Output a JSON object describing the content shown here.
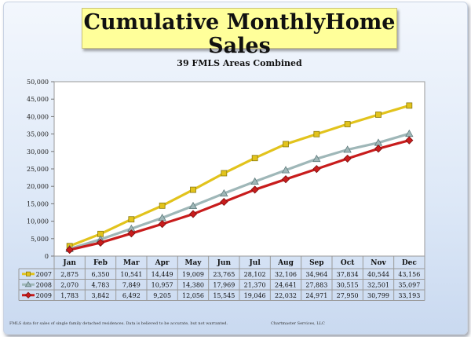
{
  "title": "Cumulative MonthlyHome Sales",
  "subtitle": "39 FMLS Areas Combined",
  "footer": {
    "note": "FMLS data for sales of single family detached residences.  Data is believed to be accurate, but not warranted.",
    "credit": "Chartmaster Services, LLC"
  },
  "chart_data": {
    "type": "line",
    "categories": [
      "Jan",
      "Feb",
      "Mar",
      "Apr",
      "May",
      "Jun",
      "Jul",
      "Aug",
      "Sep",
      "Oct",
      "Nov",
      "Dec"
    ],
    "yticks": [
      "0",
      "5,000",
      "10,000",
      "15,000",
      "20,000",
      "25,000",
      "30,000",
      "35,000",
      "40,000",
      "45,000",
      "50,000"
    ],
    "ylim": [
      0,
      50000
    ],
    "grid": false,
    "legend": "table-left",
    "series": [
      {
        "name": "2007",
        "color": "#e2c31c",
        "marker": "square",
        "values": [
          2875,
          6350,
          10541,
          14449,
          19009,
          23765,
          28102,
          32106,
          34964,
          37834,
          40544,
          43156
        ],
        "labels": [
          "2,875",
          "6,350",
          "10,541",
          "14,449",
          "19,009",
          "23,765",
          "28,102",
          "32,106",
          "34,964",
          "37,834",
          "40,544",
          "43,156"
        ]
      },
      {
        "name": "2008",
        "color": "#9fb7b8",
        "marker": "triangle",
        "values": [
          2070,
          4783,
          7849,
          10957,
          14380,
          17969,
          21370,
          24641,
          27883,
          30515,
          32501,
          35097
        ],
        "labels": [
          "2,070",
          "4,783",
          "7,849",
          "10,957",
          "14,380",
          "17,969",
          "21,370",
          "24,641",
          "27,883",
          "30,515",
          "32,501",
          "35,097"
        ]
      },
      {
        "name": "2009",
        "color": "#c81c1c",
        "marker": "diamond",
        "values": [
          1783,
          3842,
          6492,
          9205,
          12056,
          15545,
          19046,
          22032,
          24971,
          27950,
          30799,
          33193
        ],
        "labels": [
          "1,783",
          "3,842",
          "6,492",
          "9,205",
          "12,056",
          "15,545",
          "19,046",
          "22,032",
          "24,971",
          "27,950",
          "30,799",
          "33,193"
        ]
      }
    ]
  }
}
